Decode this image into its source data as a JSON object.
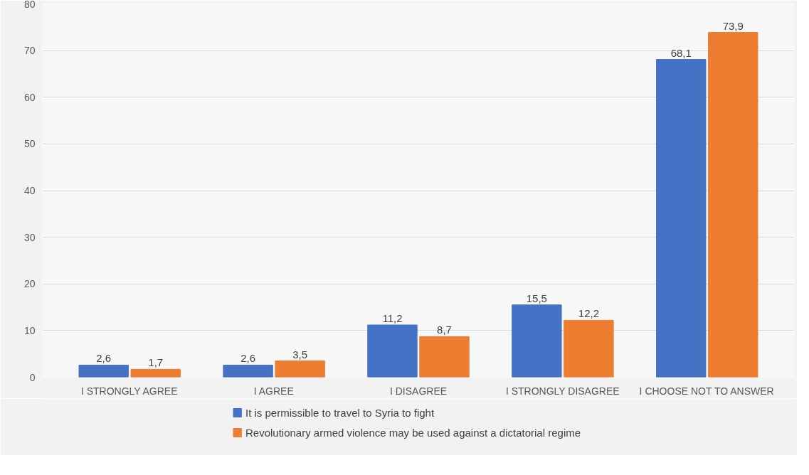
{
  "chart_data": {
    "type": "bar",
    "categories": [
      "I STRONGLY AGREE",
      "I AGREE",
      "I DISAGREE",
      "I STRONGLY DISAGREE",
      "I CHOOSE NOT TO ANSWER"
    ],
    "series": [
      {
        "name": "It is permissible to travel to Syria to fight",
        "color": "#4472c4",
        "values": [
          2.6,
          2.6,
          11.2,
          15.5,
          68.1
        ],
        "value_labels": [
          "2,6",
          "2,6",
          "11,2",
          "15,5",
          "68,1"
        ]
      },
      {
        "name": "Revolutionary armed violence may be used against a dictatorial regime",
        "color": "#ed7d31",
        "values": [
          1.7,
          3.5,
          8.7,
          12.2,
          73.9
        ],
        "value_labels": [
          "1,7",
          "3,5",
          "8,7",
          "12,2",
          "73,9"
        ]
      }
    ],
    "ylim": [
      0,
      80
    ],
    "yticks": [
      0,
      10,
      20,
      30,
      40,
      50,
      60,
      70,
      80
    ],
    "grid": "y",
    "legend": "bottom"
  }
}
